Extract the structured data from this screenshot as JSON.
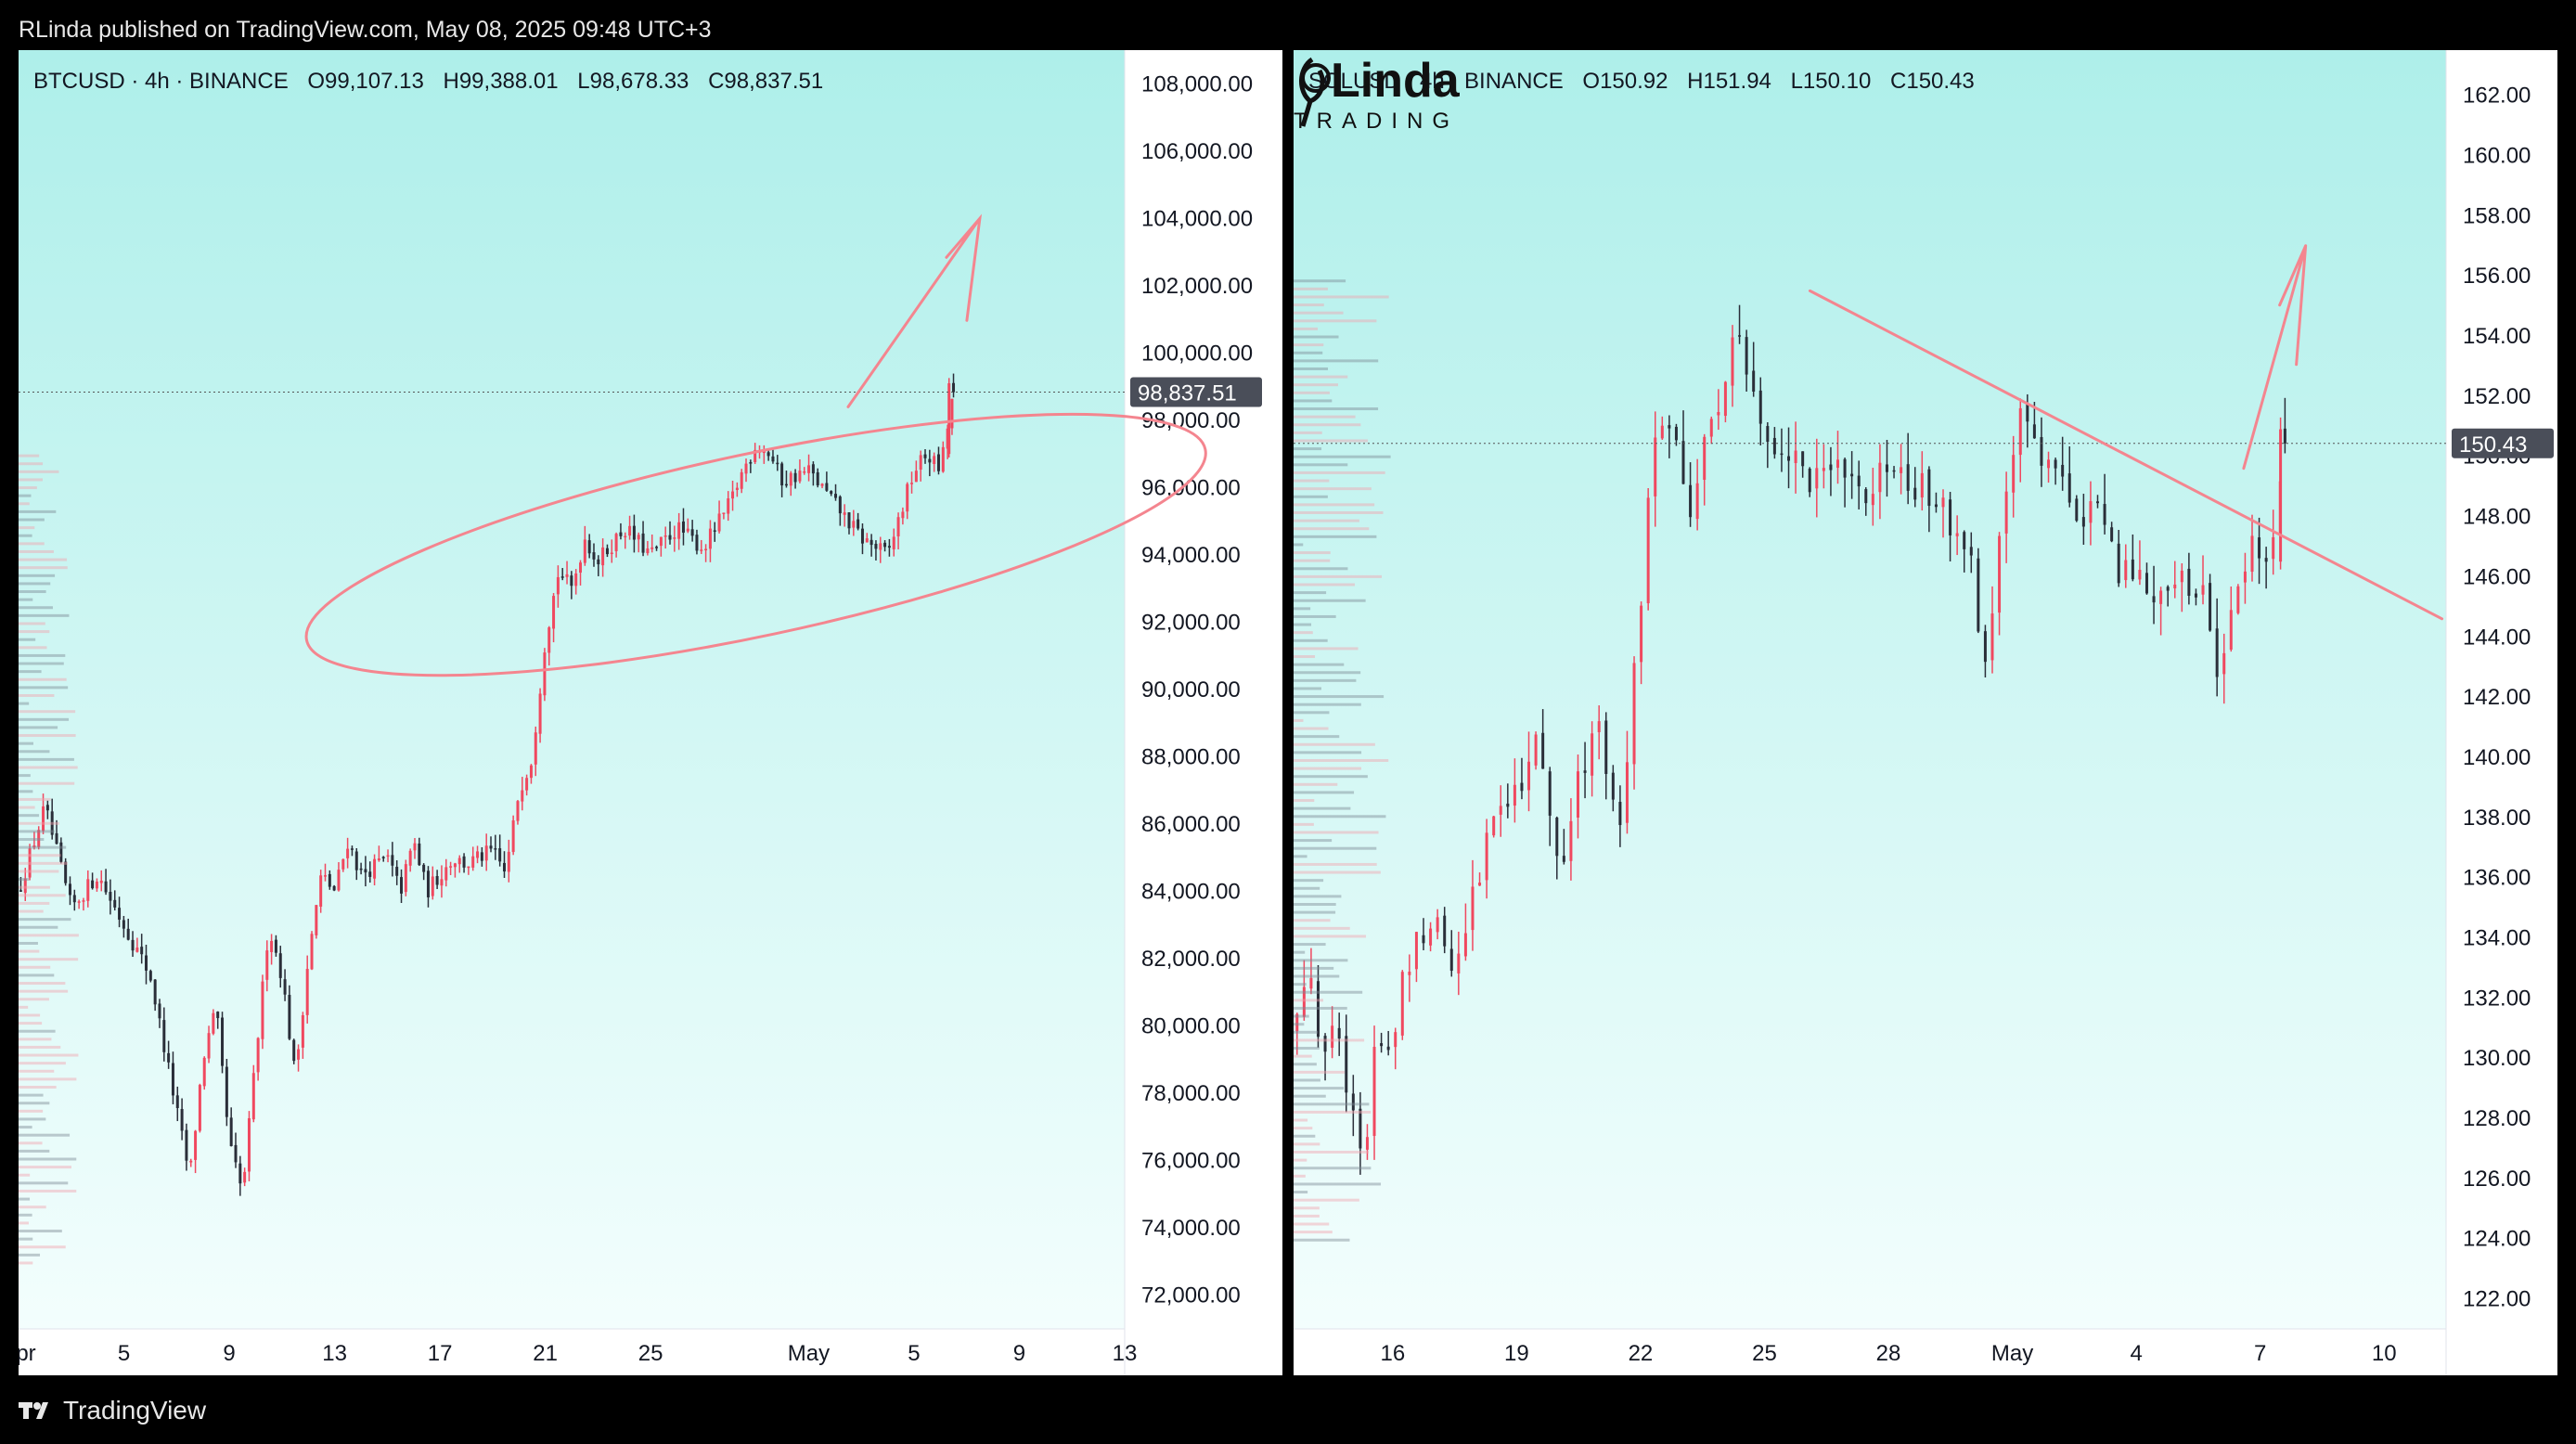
{
  "header": {
    "published": "RLinda published on TradingView.com, May 08, 2025 09:48 UTC+3"
  },
  "footer": {
    "brand": "TradingView"
  },
  "colors": {
    "bg_top": "#aeefea",
    "bg_bottom": "#f3fefd",
    "up": "#f0485f",
    "down": "#2a2e39",
    "drawing": "#f4858f",
    "price_tag": "#4a4e59"
  },
  "watermark": {
    "line1": "RLinda",
    "line2": "TRADING"
  },
  "charts": [
    {
      "legend": {
        "symbol": "BTCUSD · 4h · BINANCE",
        "open": "O99,107.13",
        "high": "H99,388.01",
        "low": "L98,678.33",
        "close": "C98,837.51"
      },
      "last_price_label": "98,837.51",
      "y_tick_labels": [
        "108,000.00",
        "106,000.00",
        "104,000.00",
        "102,000.00",
        "100,000.00",
        "98,000.00",
        "96,000.00",
        "94,000.00",
        "92,000.00",
        "90,000.00",
        "88,000.00",
        "86,000.00",
        "84,000.00",
        "82,000.00",
        "80,000.00",
        "78,000.00",
        "76,000.00",
        "74,000.00",
        "72,000.00"
      ],
      "x_tick_labels": [
        "Apr",
        "5",
        "9",
        "13",
        "17",
        "21",
        "25",
        "May",
        "5",
        "9",
        "13"
      ]
    },
    {
      "legend": {
        "symbol": "SOLUSD · 4h · BINANCE",
        "open": "O150.92",
        "high": "H151.94",
        "low": "L150.10",
        "close": "C150.43"
      },
      "last_price_label": "150.43",
      "y_tick_labels": [
        "162.00",
        "160.00",
        "158.00",
        "156.00",
        "154.00",
        "152.00",
        "150.00",
        "148.00",
        "146.00",
        "144.00",
        "142.00",
        "140.00",
        "138.00",
        "136.00",
        "134.00",
        "132.00",
        "130.00",
        "128.00",
        "126.00",
        "124.00",
        "122.00"
      ],
      "x_tick_labels": [
        "16",
        "19",
        "22",
        "25",
        "28",
        "May",
        "4",
        "7",
        "10"
      ]
    }
  ],
  "chart_data": [
    {
      "type": "candlestick",
      "symbol": "BTCUSD",
      "interval": "4h",
      "exchange": "BINANCE",
      "ylim": [
        71000,
        109000
      ],
      "x_ticks": [
        {
          "label": "Apr",
          "day": 1
        },
        {
          "label": "5",
          "day": 5
        },
        {
          "label": "9",
          "day": 9
        },
        {
          "label": "13",
          "day": 13
        },
        {
          "label": "17",
          "day": 17
        },
        {
          "label": "21",
          "day": 21
        },
        {
          "label": "25",
          "day": 25
        },
        {
          "label": "May",
          "day": 31
        },
        {
          "label": "5",
          "day": 35
        },
        {
          "label": "9",
          "day": 39
        },
        {
          "label": "13",
          "day": 43
        }
      ],
      "xlim_days": [
        1,
        43
      ],
      "last": {
        "open": 99107.13,
        "high": 99388.01,
        "low": 98678.33,
        "close": 98837.51
      },
      "path": [
        [
          1,
          84000
        ],
        [
          2,
          86500
        ],
        [
          3,
          83500
        ],
        [
          4,
          84500
        ],
        [
          5,
          83000
        ],
        [
          6,
          81500
        ],
        [
          7,
          77500
        ],
        [
          7.5,
          75500
        ],
        [
          8,
          79000
        ],
        [
          8.5,
          80500
        ],
        [
          9,
          76500
        ],
        [
          9.5,
          75000
        ],
        [
          10,
          79000
        ],
        [
          10.5,
          83000
        ],
        [
          11,
          81500
        ],
        [
          11.5,
          78500
        ],
        [
          12,
          82000
        ],
        [
          12.5,
          84500
        ],
        [
          13,
          84000
        ],
        [
          13.5,
          85500
        ],
        [
          14,
          84500
        ],
        [
          15,
          85000
        ],
        [
          15.5,
          84000
        ],
        [
          16,
          85500
        ],
        [
          16.5,
          84000
        ],
        [
          17,
          84500
        ],
        [
          17.5,
          85000
        ],
        [
          18,
          84800
        ],
        [
          19,
          85200
        ],
        [
          19.5,
          84500
        ],
        [
          20,
          87000
        ],
        [
          20.5,
          88000
        ],
        [
          21,
          91500
        ],
        [
          21.5,
          93500
        ],
        [
          22,
          93000
        ],
        [
          22.5,
          94500
        ],
        [
          23,
          93800
        ],
        [
          24,
          94800
        ],
        [
          25,
          94000
        ],
        [
          26,
          94800
        ],
        [
          27,
          94200
        ],
        [
          28,
          95500
        ],
        [
          28.5,
          96500
        ],
        [
          29,
          97300
        ],
        [
          29.5,
          97000
        ],
        [
          30,
          96200
        ],
        [
          31,
          96500
        ],
        [
          32,
          95500
        ],
        [
          33,
          94500
        ],
        [
          34,
          94000
        ],
        [
          35,
          96500
        ],
        [
          35.5,
          97000
        ],
        [
          36,
          96500
        ],
        [
          36.5,
          98837.51
        ]
      ],
      "annotations": [
        "ellipse around consolidation",
        "arrow pointing up"
      ]
    },
    {
      "type": "candlestick",
      "symbol": "SOLUSD",
      "interval": "4h",
      "exchange": "BINANCE",
      "ylim": [
        121,
        163.5
      ],
      "x_ticks": [
        {
          "label": "16",
          "day": 16
        },
        {
          "label": "19",
          "day": 19
        },
        {
          "label": "22",
          "day": 22
        },
        {
          "label": "25",
          "day": 25
        },
        {
          "label": "28",
          "day": 28
        },
        {
          "label": "May",
          "day": 31
        },
        {
          "label": "4",
          "day": 34
        },
        {
          "label": "7",
          "day": 37
        },
        {
          "label": "10",
          "day": 40
        }
      ],
      "xlim_days": [
        13.6,
        41.5
      ],
      "last": {
        "open": 150.92,
        "high": 151.94,
        "low": 150.1,
        "close": 150.43
      },
      "path": [
        [
          13.6,
          131
        ],
        [
          14,
          133
        ],
        [
          14.3,
          130
        ],
        [
          14.6,
          132
        ],
        [
          15,
          128
        ],
        [
          15.3,
          126
        ],
        [
          15.6,
          131
        ],
        [
          16,
          130
        ],
        [
          16.3,
          133
        ],
        [
          16.6,
          134
        ],
        [
          17,
          135
        ],
        [
          17.5,
          133
        ],
        [
          18,
          136
        ],
        [
          18.5,
          138
        ],
        [
          19,
          139
        ],
        [
          19.5,
          141
        ],
        [
          20,
          136
        ],
        [
          20.5,
          139
        ],
        [
          21,
          141
        ],
        [
          21.5,
          138
        ],
        [
          22,
          145
        ],
        [
          22.3,
          150
        ],
        [
          22.6,
          152
        ],
        [
          23,
          149
        ],
        [
          23.3,
          148
        ],
        [
          23.6,
          151
        ],
        [
          24,
          152
        ],
        [
          24.3,
          154
        ],
        [
          24.6,
          152.5
        ],
        [
          25,
          151
        ],
        [
          25.5,
          150
        ],
        [
          26,
          149.5
        ],
        [
          26.5,
          149
        ],
        [
          27,
          150
        ],
        [
          27.5,
          148
        ],
        [
          28,
          150
        ],
        [
          28.5,
          148.5
        ],
        [
          29,
          149
        ],
        [
          29.5,
          148
        ],
        [
          30,
          147
        ],
        [
          30.3,
          142
        ],
        [
          30.6,
          146
        ],
        [
          31,
          150
        ],
        [
          31.3,
          151.5
        ],
        [
          31.6,
          150.5
        ],
        [
          32,
          149
        ],
        [
          32.5,
          148.5
        ],
        [
          33,
          148
        ],
        [
          33.5,
          146.5
        ],
        [
          34,
          146
        ],
        [
          34.5,
          145.5
        ],
        [
          35,
          145.5
        ],
        [
          35.5,
          146
        ],
        [
          36,
          143
        ],
        [
          36.5,
          146.5
        ],
        [
          37,
          147
        ],
        [
          37.3,
          146.5
        ],
        [
          37.6,
          150.43
        ]
      ],
      "annotations": [
        "descending trendline",
        "arrow pointing up"
      ]
    }
  ]
}
